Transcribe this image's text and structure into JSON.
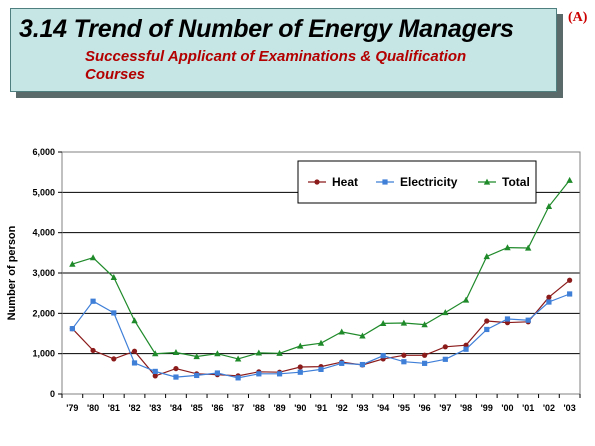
{
  "header": {
    "title": "3.14 Trend of Number of Energy Managers",
    "subtitle_line1": "Successful Applicant of Examinations & Qualification",
    "subtitle_line2": "Courses",
    "corner_label": "(A)"
  },
  "colors": {
    "heat": "#8b1a1a",
    "electricity": "#3f7fd8",
    "total": "#1f8a2a",
    "title_box": "#c6e6e6",
    "subtitle_text": "#b30000"
  },
  "chart_data": {
    "type": "line",
    "title": "",
    "xlabel": "",
    "ylabel": "Number of person",
    "ylim": [
      0,
      6000
    ],
    "yticks": [
      0,
      1000,
      2000,
      3000,
      4000,
      5000,
      6000
    ],
    "ytick_labels": [
      "0",
      "1,000",
      "2,000",
      "3,000",
      "4,000",
      "5,000",
      "6,000"
    ],
    "categories": [
      "'79",
      "'80",
      "'81",
      "'82",
      "'83",
      "'84",
      "'85",
      "'86",
      "'87",
      "'88",
      "'89",
      "'90",
      "'91",
      "'92",
      "'93",
      "'94",
      "'95",
      "'96",
      "'97",
      "'98",
      "'99",
      "'00",
      "'01",
      "'02",
      "'03"
    ],
    "grid": true,
    "legend_position": "top-right",
    "series": [
      {
        "name": "Heat",
        "marker": "circle",
        "values": [
          1620,
          1080,
          870,
          1060,
          450,
          630,
          500,
          480,
          450,
          550,
          540,
          670,
          680,
          790,
          720,
          870,
          960,
          960,
          1170,
          1210,
          1810,
          1770,
          1790,
          2400,
          2820
        ]
      },
      {
        "name": "Electricity",
        "marker": "square",
        "values": [
          1620,
          2300,
          2010,
          770,
          560,
          420,
          460,
          520,
          400,
          500,
          500,
          540,
          610,
          760,
          730,
          950,
          800,
          760,
          860,
          1110,
          1600,
          1860,
          1830,
          2280,
          2480
        ]
      },
      {
        "name": "Total",
        "marker": "triangle",
        "values": [
          3220,
          3380,
          2890,
          1820,
          1000,
          1030,
          930,
          1000,
          870,
          1020,
          1010,
          1190,
          1260,
          1540,
          1440,
          1750,
          1760,
          1720,
          2020,
          2330,
          3410,
          3630,
          3620,
          4650,
          5300
        ]
      }
    ]
  }
}
